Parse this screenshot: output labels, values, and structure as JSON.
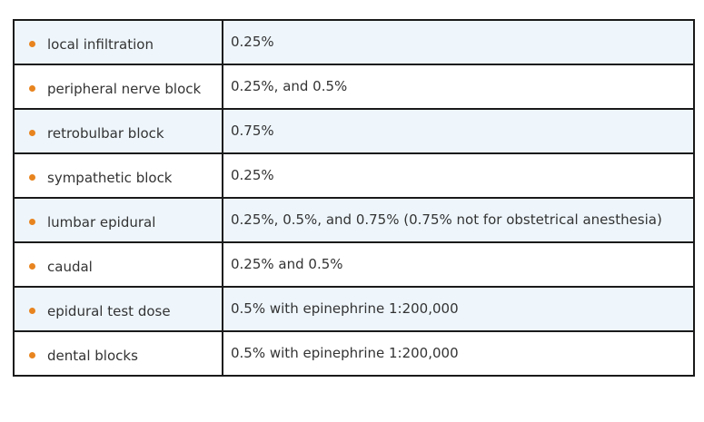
{
  "accent_color": "#e8841f",
  "rows": [
    {
      "term": "local infiltration",
      "value": "0.25%"
    },
    {
      "term": "peripheral nerve block",
      "value": "0.25%, and 0.5%"
    },
    {
      "term": "retrobulbar block",
      "value": "0.75%"
    },
    {
      "term": "sympathetic block",
      "value": "0.25%"
    },
    {
      "term": "lumbar epidural",
      "value": "0.25%, 0.5%, and 0.75% (0.75% not for obstetrical anesthesia)"
    },
    {
      "term": "caudal",
      "value": "0.25% and 0.5%"
    },
    {
      "term": "epidural test dose",
      "value": "0.5% with epinephrine 1:200,000"
    },
    {
      "term": "dental blocks",
      "value": "0.5% with epinephrine 1:200,000"
    }
  ]
}
